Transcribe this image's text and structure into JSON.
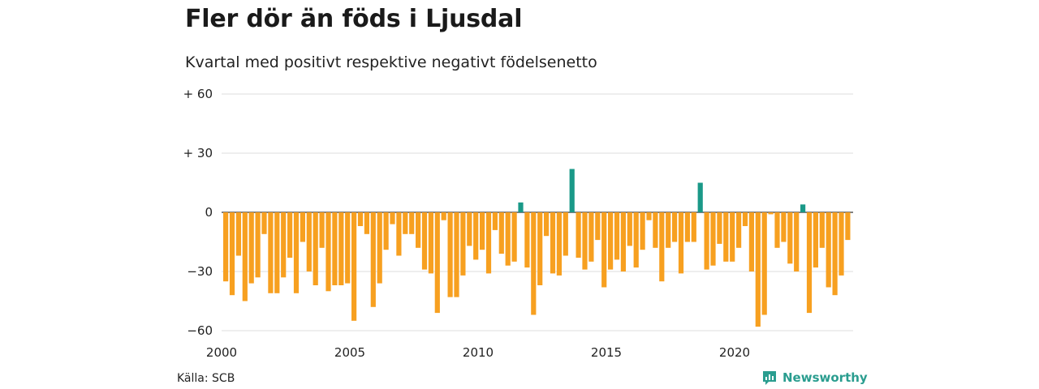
{
  "title": "Fler dör än föds i Ljusdal",
  "subtitle": "Kvartal med positivt respektive negativt födelsenetto",
  "source": "Källa: SCB",
  "brand": "Newsworthy",
  "colors": {
    "positive": "#1a9988",
    "negative": "#f7a020",
    "grid": "#dddddd",
    "brand": "#2a9d8f"
  },
  "chart_data": {
    "type": "bar",
    "ylim": [
      -60,
      60
    ],
    "yticks": [
      {
        "value": 60,
        "label": "+ 60"
      },
      {
        "value": 30,
        "label": "+ 30"
      },
      {
        "value": 0,
        "label": "0"
      },
      {
        "value": -30,
        "label": "−30"
      },
      {
        "value": -60,
        "label": "−60"
      }
    ],
    "xticks": [
      {
        "value": 2000,
        "label": "2000"
      },
      {
        "value": 2005,
        "label": "2005"
      },
      {
        "value": 2010,
        "label": "2010"
      },
      {
        "value": 2015,
        "label": "2015"
      },
      {
        "value": 2020,
        "label": "2020"
      }
    ],
    "x_start": "2000 Q1",
    "values": [
      -35,
      -42,
      -22,
      -45,
      -36,
      -33,
      -11,
      -41,
      -41,
      -33,
      -23,
      -41,
      -15,
      -30,
      -37,
      -18,
      -40,
      -37,
      -37,
      -36,
      -55,
      -7,
      -11,
      -48,
      -36,
      -19,
      -6,
      -22,
      -11,
      -11,
      -18,
      -29,
      -31,
      -51,
      -4,
      -43,
      -43,
      -32,
      -17,
      -24,
      -19,
      -31,
      -9,
      -21,
      -27,
      -25,
      5,
      -28,
      -52,
      -37,
      -12,
      -31,
      -32,
      -22,
      22,
      -23,
      -29,
      -25,
      -14,
      -38,
      -29,
      -24,
      -30,
      -17,
      -28,
      -19,
      -4,
      -18,
      -35,
      -18,
      -15,
      -31,
      -15,
      -15,
      15,
      -29,
      -27,
      -16,
      -25,
      -25,
      -18,
      -7,
      -30,
      -58,
      -52,
      -1,
      -18,
      -15,
      -26,
      -30,
      4,
      -51,
      -28,
      -18,
      -38,
      -42,
      -32,
      -14
    ]
  }
}
